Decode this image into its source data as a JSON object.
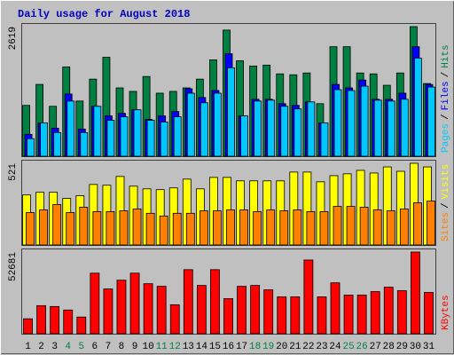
{
  "chart_data": [
    {
      "type": "bar",
      "title": "Daily usage for August 2018",
      "ylim": [
        0,
        2619
      ],
      "yticks": [
        2619
      ],
      "legend_separator": "/",
      "series": [
        {
          "name": "Hits",
          "color": "#008040",
          "values": [
            1027,
            1451,
            1009,
            1805,
            1115,
            1558,
            2000,
            1381,
            1310,
            1611,
            1274,
            1310,
            1381,
            1558,
            1947,
            2549,
            1929,
            1823,
            1841,
            1664,
            1646,
            1682,
            1062,
            2213,
            2213,
            1682,
            1664,
            1434,
            1682,
            2619,
            1469
          ]
        },
        {
          "name": "Files",
          "color": "#0000ff",
          "values": [
            443,
            673,
            566,
            1257,
            549,
            1009,
            814,
            867,
            938,
            743,
            814,
            903,
            1363,
            1186,
            1328,
            2071,
            814,
            1151,
            1151,
            1062,
            1027,
            1097,
            673,
            1451,
            1381,
            1540,
            1151,
            1151,
            1274,
            2213,
            1451
          ]
        },
        {
          "name": "Pages",
          "color": "#00c8ff",
          "values": [
            354,
            673,
            478,
            1115,
            478,
            1009,
            726,
            797,
            938,
            726,
            690,
            797,
            1274,
            1080,
            1274,
            1788,
            814,
            1115,
            1133,
            1009,
            956,
            1097,
            673,
            1345,
            1328,
            1416,
            1133,
            1115,
            1151,
            1982,
            1398
          ]
        }
      ]
    },
    {
      "type": "bar",
      "ylim": [
        0,
        521
      ],
      "yticks": [
        521
      ],
      "legend_separator": "/",
      "series": [
        {
          "name": "Visits",
          "color": "#ffff00",
          "values": [
            319,
            336,
            336,
            297,
            314,
            386,
            381,
            437,
            375,
            358,
            353,
            364,
            420,
            358,
            431,
            431,
            409,
            409,
            409,
            409,
            465,
            465,
            403,
            442,
            454,
            476,
            459,
            498,
            470,
            521,
            498
          ]
        },
        {
          "name": "Sites",
          "color": "#ff8000",
          "values": [
            207,
            224,
            258,
            207,
            241,
            213,
            213,
            218,
            230,
            202,
            185,
            202,
            202,
            218,
            218,
            224,
            224,
            213,
            224,
            218,
            224,
            213,
            213,
            246,
            246,
            241,
            224,
            218,
            230,
            269,
            280
          ]
        }
      ]
    },
    {
      "type": "bar",
      "ylim": [
        0,
        52681
      ],
      "yticks": [
        52681
      ],
      "categories": [
        "1",
        "2",
        "3",
        "4",
        "5",
        "6",
        "7",
        "8",
        "9",
        "10",
        "11",
        "12",
        "13",
        "14",
        "15",
        "16",
        "17",
        "18",
        "19",
        "20",
        "21",
        "22",
        "23",
        "24",
        "25",
        "26",
        "27",
        "28",
        "29",
        "30",
        "31"
      ],
      "category_colors": [
        "#000000",
        "#000000",
        "#000000",
        "#008040",
        "#008040",
        "#000000",
        "#000000",
        "#000000",
        "#000000",
        "#000000",
        "#008040",
        "#008040",
        "#000000",
        "#000000",
        "#000000",
        "#000000",
        "#000000",
        "#008040",
        "#008040",
        "#000000",
        "#000000",
        "#000000",
        "#000000",
        "#000000",
        "#008040",
        "#008040",
        "#000000",
        "#000000",
        "#000000",
        "#000000",
        "#000000"
      ],
      "series": [
        {
          "name": "KBytes",
          "color": "#ff0000",
          "values": [
            9622,
            18112,
            17546,
            15282,
            10754,
            39054,
            28866,
            34526,
            39054,
            32262,
            30564,
            18678,
            41318,
            31130,
            41318,
            22640,
            30564,
            31130,
            28300,
            23772,
            23772,
            47544,
            23772,
            32828,
            24904,
            24904,
            27168,
            29998,
            27734,
            52681,
            26602
          ]
        }
      ]
    }
  ]
}
